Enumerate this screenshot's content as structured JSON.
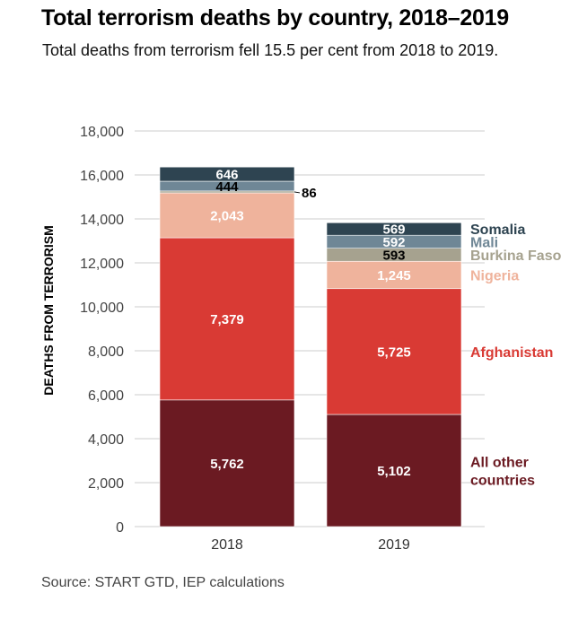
{
  "title": "Total terrorism deaths by country, 2018–2019",
  "subtitle": "Total deaths from terrorism fell 15.5 per cent from 2018 to 2019.",
  "source": "Source: START GTD, IEP calculations",
  "colors": {
    "All other countries": "#6b1a22",
    "Afghanistan": "#d93a34",
    "Nigeria": "#efb39c",
    "Burkina Faso": "#a6a28f",
    "Mali": "#6f8796",
    "Somalia": "#2e4451",
    "grid": "#cccccc"
  },
  "chart_data": {
    "type": "bar",
    "stacked": true,
    "categories": [
      "2018",
      "2019"
    ],
    "ylabel": "DEATHS FROM TERRORISM",
    "ylim": [
      0,
      18000
    ],
    "yticks": [
      "0",
      "2,000",
      "4,000",
      "6,000",
      "8,000",
      "10,000",
      "12,000",
      "14,000",
      "16,000",
      "18,000"
    ],
    "grid": true,
    "legend": "right",
    "series": [
      {
        "name": "All other countries",
        "legend_lines": [
          "All other",
          "countries"
        ],
        "values": [
          5762,
          5102
        ],
        "labels": [
          "5,762",
          "5,102"
        ]
      },
      {
        "name": "Afghanistan",
        "legend_lines": [
          "Afghanistan"
        ],
        "values": [
          7379,
          5725
        ],
        "labels": [
          "7,379",
          "5,725"
        ]
      },
      {
        "name": "Nigeria",
        "legend_lines": [
          "Nigeria"
        ],
        "values": [
          2043,
          1245
        ],
        "labels": [
          "2,043",
          "1,245"
        ]
      },
      {
        "name": "Burkina Faso",
        "legend_lines": [
          "Burkina Faso"
        ],
        "values": [
          86,
          593
        ],
        "labels": [
          "86",
          "593"
        ]
      },
      {
        "name": "Mali",
        "legend_lines": [
          "Mali"
        ],
        "values": [
          444,
          592
        ],
        "labels": [
          "444",
          "592"
        ]
      },
      {
        "name": "Somalia",
        "legend_lines": [
          "Somalia"
        ],
        "values": [
          646,
          569
        ],
        "labels": [
          "646",
          "569"
        ]
      }
    ]
  }
}
